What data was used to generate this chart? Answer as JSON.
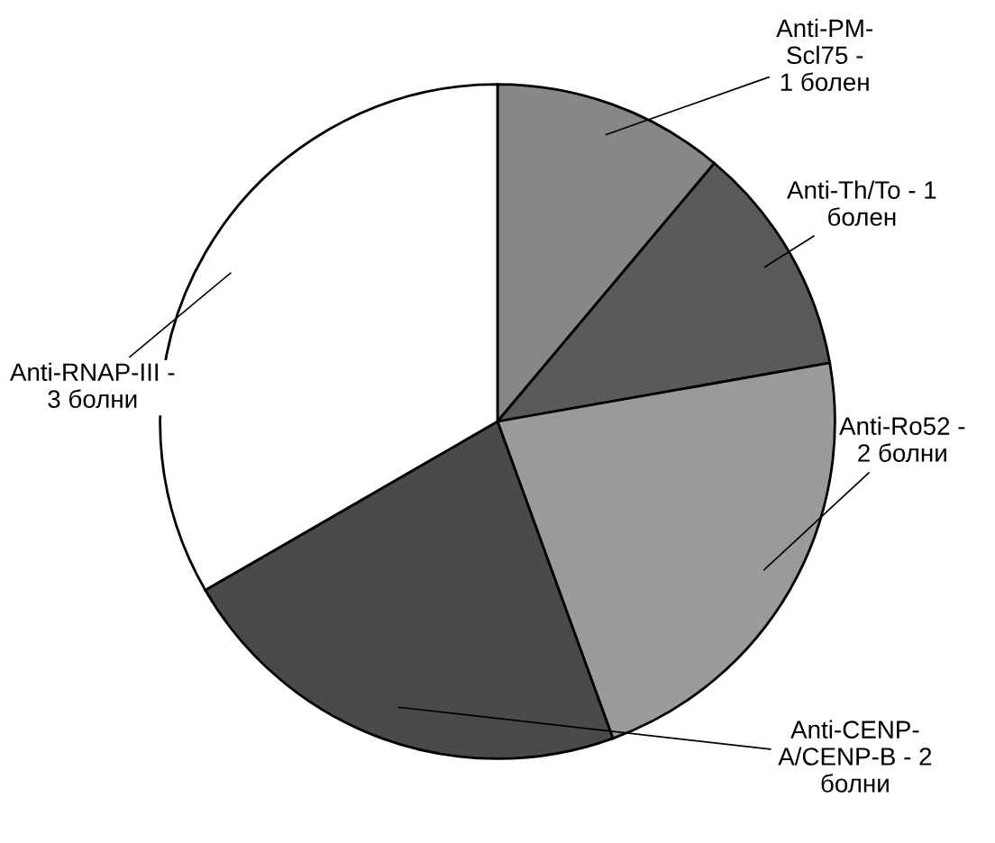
{
  "chart_data": {
    "type": "pie",
    "categories": [
      "Anti-PM-\nScl75 -\n1 болен",
      "Anti-Th/To - 1\nболен",
      "Anti-Ro52 -\n2 болни",
      "Anti-CENP-\nA/CENP-B - 2\nболни",
      "Anti-RNAP-III -\n3 болни"
    ],
    "values": [
      1,
      1,
      2,
      2,
      3
    ],
    "colors": [
      "#878787",
      "#5a5a5a",
      "#9a9a9a",
      "#4a4a4a",
      "#ffffff"
    ]
  }
}
